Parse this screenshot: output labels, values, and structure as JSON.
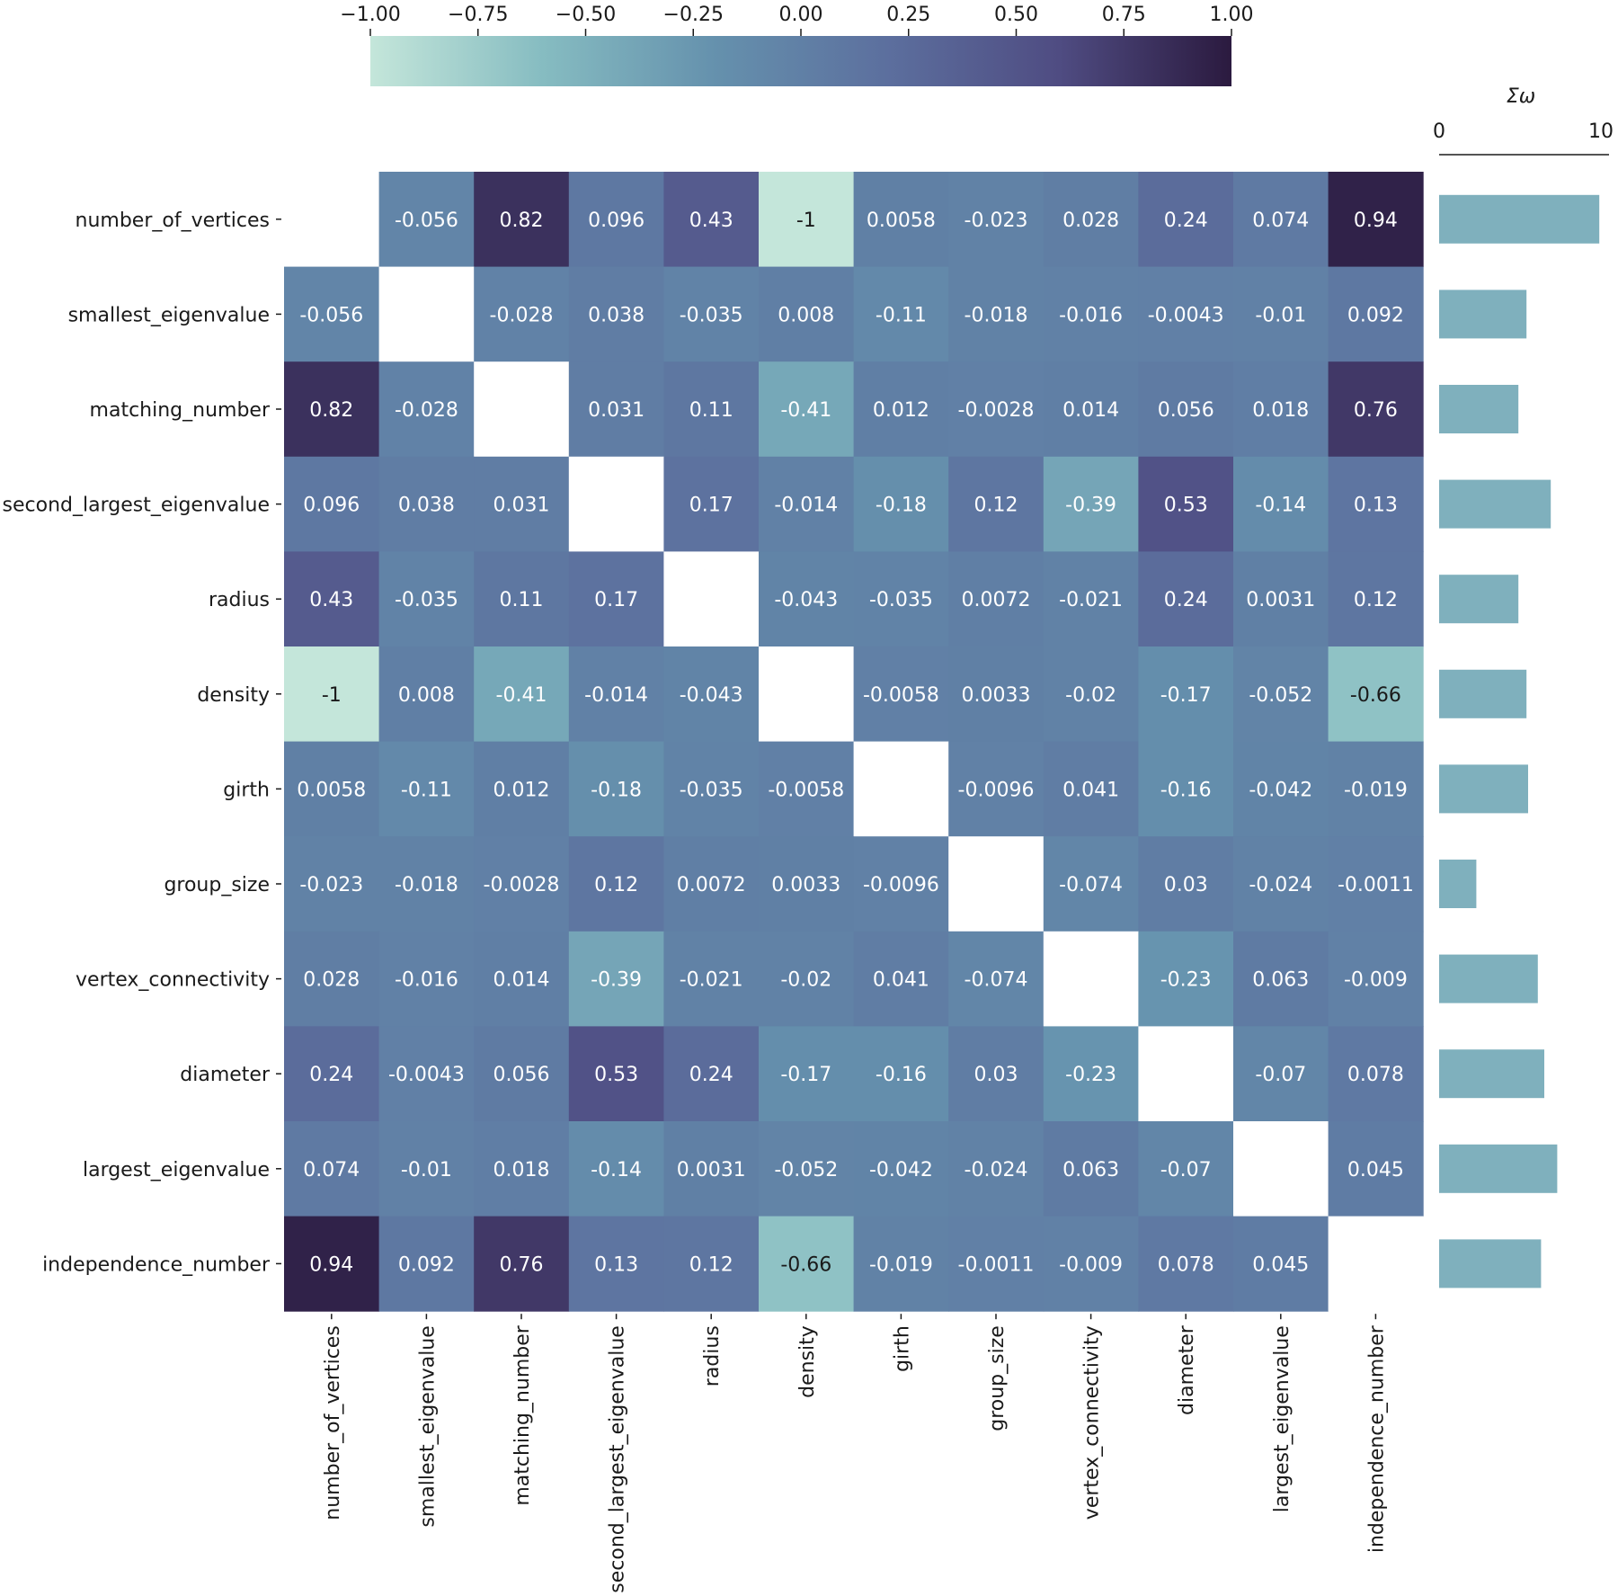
{
  "chart_data": [
    {
      "type": "heatmap",
      "title": "",
      "xlabel": "",
      "ylabel": "",
      "variables": [
        "number_of_vertices",
        "smallest_eigenvalue",
        "matching_number",
        "second_largest_eigenvalue",
        "radius",
        "density",
        "girth",
        "group_size",
        "vertex_connectivity",
        "diameter",
        "largest_eigenvalue",
        "independence_number"
      ],
      "cell_labels": [
        [
          "",
          "-0.056",
          "0.82",
          "0.096",
          "0.43",
          "-1",
          "0.0058",
          "-0.023",
          "0.028",
          "0.24",
          "0.074",
          "0.94"
        ],
        [
          "-0.056",
          "",
          "-0.028",
          "0.038",
          "-0.035",
          "0.008",
          "-0.11",
          "-0.018",
          "-0.016",
          "-0.0043",
          "-0.01",
          "0.092"
        ],
        [
          "0.82",
          "-0.028",
          "",
          "0.031",
          "0.11",
          "-0.41",
          "0.012",
          "-0.0028",
          "0.014",
          "0.056",
          "0.018",
          "0.76"
        ],
        [
          "0.096",
          "0.038",
          "0.031",
          "",
          "0.17",
          "-0.014",
          "-0.18",
          "0.12",
          "-0.39",
          "0.53",
          "-0.14",
          "0.13"
        ],
        [
          "0.43",
          "-0.035",
          "0.11",
          "0.17",
          "",
          "-0.043",
          "-0.035",
          "0.0072",
          "-0.021",
          "0.24",
          "0.0031",
          "0.12"
        ],
        [
          "-1",
          "0.008",
          "-0.41",
          "-0.014",
          "-0.043",
          "",
          "-0.0058",
          "0.0033",
          "-0.02",
          "-0.17",
          "-0.052",
          "-0.66"
        ],
        [
          "0.0058",
          "-0.11",
          "0.012",
          "-0.18",
          "-0.035",
          "-0.0058",
          "",
          "-0.0096",
          "0.041",
          "-0.16",
          "-0.042",
          "-0.019"
        ],
        [
          "-0.023",
          "-0.018",
          "-0.0028",
          "0.12",
          "0.0072",
          "0.0033",
          "-0.0096",
          "",
          "-0.074",
          "0.03",
          "-0.024",
          "-0.0011"
        ],
        [
          "0.028",
          "-0.016",
          "0.014",
          "-0.39",
          "-0.021",
          "-0.02",
          "0.041",
          "-0.074",
          "",
          "-0.23",
          "0.063",
          "-0.009"
        ],
        [
          "0.24",
          "-0.0043",
          "0.056",
          "0.53",
          "0.24",
          "-0.17",
          "-0.16",
          "0.03",
          "-0.23",
          "",
          "-0.07",
          "0.078"
        ],
        [
          "0.074",
          "-0.01",
          "0.018",
          "-0.14",
          "0.0031",
          "-0.052",
          "-0.042",
          "-0.024",
          "0.063",
          "-0.07",
          "",
          "0.045"
        ],
        [
          "0.94",
          "0.092",
          "0.76",
          "0.13",
          "0.12",
          "-0.66",
          "-0.019",
          "-0.0011",
          "-0.009",
          "0.078",
          "0.045",
          ""
        ]
      ],
      "colorbar": {
        "range": [
          -1,
          1
        ],
        "ticks": [
          "−1.00",
          "−0.75",
          "−0.50",
          "−0.25",
          "0.00",
          "0.25",
          "0.50",
          "0.75",
          "1.00"
        ],
        "placement": "top",
        "colors": [
          "#c4e6da",
          "#86bcc1",
          "#6591ad",
          "#5c6f9e",
          "#4f4c82",
          "#2b1a3f"
        ]
      },
      "mask_color": "#ffffff",
      "text_dark_color": "#1a1a1a",
      "text_light_color": "#ffffff"
    },
    {
      "type": "bar",
      "orientation": "horizontal",
      "title": "Σω",
      "xlim": [
        0,
        10
      ],
      "xticks": [
        "0",
        "10"
      ],
      "categories": [
        "number_of_vertices",
        "smallest_eigenvalue",
        "matching_number",
        "second_largest_eigenvalue",
        "radius",
        "density",
        "girth",
        "group_size",
        "vertex_connectivity",
        "diameter",
        "largest_eigenvalue",
        "independence_number"
      ],
      "values": [
        9.9,
        5.4,
        4.9,
        6.9,
        4.9,
        5.4,
        5.5,
        2.3,
        6.1,
        6.5,
        7.3,
        6.3
      ],
      "bar_color": "#7fb0bd"
    }
  ]
}
